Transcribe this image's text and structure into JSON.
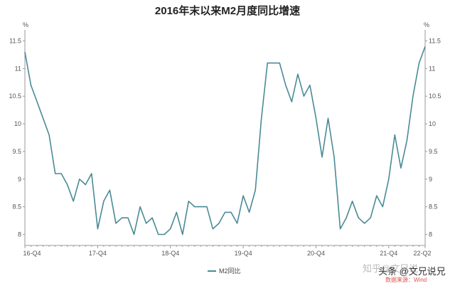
{
  "chart_data": {
    "type": "line",
    "title": "2016年末以来M2月度同比增速",
    "ylabel_left": "%",
    "ylabel_right": "%",
    "ylim": [
      7.8,
      11.7
    ],
    "yticks": [
      8,
      8.5,
      9,
      9.5,
      10,
      10.5,
      11,
      11.5
    ],
    "ytick_labels": [
      "8",
      "8.5",
      "9",
      "9.5",
      "10",
      "10.5",
      "11",
      "11.5"
    ],
    "x_tick_labels": [
      "16-Q4",
      "17-Q4",
      "18-Q4",
      "19-Q4",
      "20-Q4",
      "21-Q4",
      "22-Q2"
    ],
    "x_tick_index": [
      0,
      12,
      24,
      36,
      48,
      60,
      66
    ],
    "grid": false,
    "legend_position": "bottom-center",
    "series": [
      {
        "name": "M2同比",
        "color": "#4a8a96",
        "values": [
          11.3,
          10.7,
          10.4,
          10.1,
          9.8,
          9.1,
          9.1,
          8.9,
          8.6,
          9.0,
          8.9,
          9.1,
          8.1,
          8.6,
          8.8,
          8.2,
          8.3,
          8.3,
          8.0,
          8.5,
          8.2,
          8.3,
          8.0,
          8.0,
          8.1,
          8.4,
          8.0,
          8.6,
          8.5,
          8.5,
          8.5,
          8.1,
          8.2,
          8.4,
          8.4,
          8.2,
          8.7,
          8.4,
          8.8,
          10.1,
          11.1,
          11.1,
          11.1,
          10.7,
          10.4,
          10.9,
          10.5,
          10.7,
          10.1,
          9.4,
          10.1,
          9.4,
          8.1,
          8.3,
          8.6,
          8.3,
          8.2,
          8.3,
          8.7,
          8.5,
          9.0,
          9.8,
          9.2,
          9.7,
          10.5,
          11.1,
          11.4
        ]
      }
    ]
  },
  "source_text": "数据来源：Wind",
  "watermark_text": "知乎@文兄说",
  "credit_text": "头条 @文兄说兄"
}
